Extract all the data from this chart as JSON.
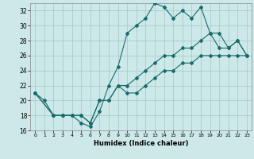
{
  "xlabel": "Humidex (Indice chaleur)",
  "bg_color": "#cce8e8",
  "grid_color": "#aacccc",
  "line_color": "#1a6b6b",
  "xlim": [
    -0.5,
    23.5
  ],
  "ylim": [
    16,
    33
  ],
  "xticks": [
    0,
    1,
    2,
    3,
    4,
    5,
    6,
    7,
    8,
    9,
    10,
    11,
    12,
    13,
    14,
    15,
    16,
    17,
    18,
    19,
    20,
    21,
    22,
    23
  ],
  "yticks": [
    16,
    18,
    20,
    22,
    24,
    26,
    28,
    30,
    32
  ],
  "line1_x": [
    0,
    1,
    2,
    3,
    4,
    5,
    6,
    7,
    8,
    9,
    10,
    11,
    12,
    13,
    14,
    15,
    16,
    17,
    18,
    19,
    20,
    21,
    22,
    23
  ],
  "line1_y": [
    21,
    20,
    18,
    18,
    18,
    17,
    16.5,
    18.5,
    22,
    24.5,
    29,
    30,
    31,
    33,
    32.5,
    31,
    32,
    31,
    32.5,
    29,
    27,
    27,
    28,
    26
  ],
  "line2_x": [
    0,
    2,
    3,
    4,
    5,
    6,
    7,
    8,
    9,
    10,
    11,
    12,
    13,
    14,
    15,
    16,
    17,
    18,
    19,
    20,
    21,
    22,
    23
  ],
  "line2_y": [
    21,
    18,
    18,
    18,
    18,
    17,
    20,
    20,
    22,
    22,
    23,
    24,
    25,
    26,
    26,
    27,
    27,
    28,
    29,
    29,
    27,
    28,
    26
  ],
  "line3_x": [
    0,
    2,
    3,
    4,
    5,
    6,
    7,
    8,
    9,
    10,
    11,
    12,
    13,
    14,
    15,
    16,
    17,
    18,
    19,
    20,
    21,
    22,
    23
  ],
  "line3_y": [
    21,
    18,
    18,
    18,
    18,
    17,
    20,
    20,
    22,
    21,
    21,
    22,
    23,
    24,
    24,
    25,
    25,
    26,
    26,
    26,
    26,
    26,
    26
  ]
}
